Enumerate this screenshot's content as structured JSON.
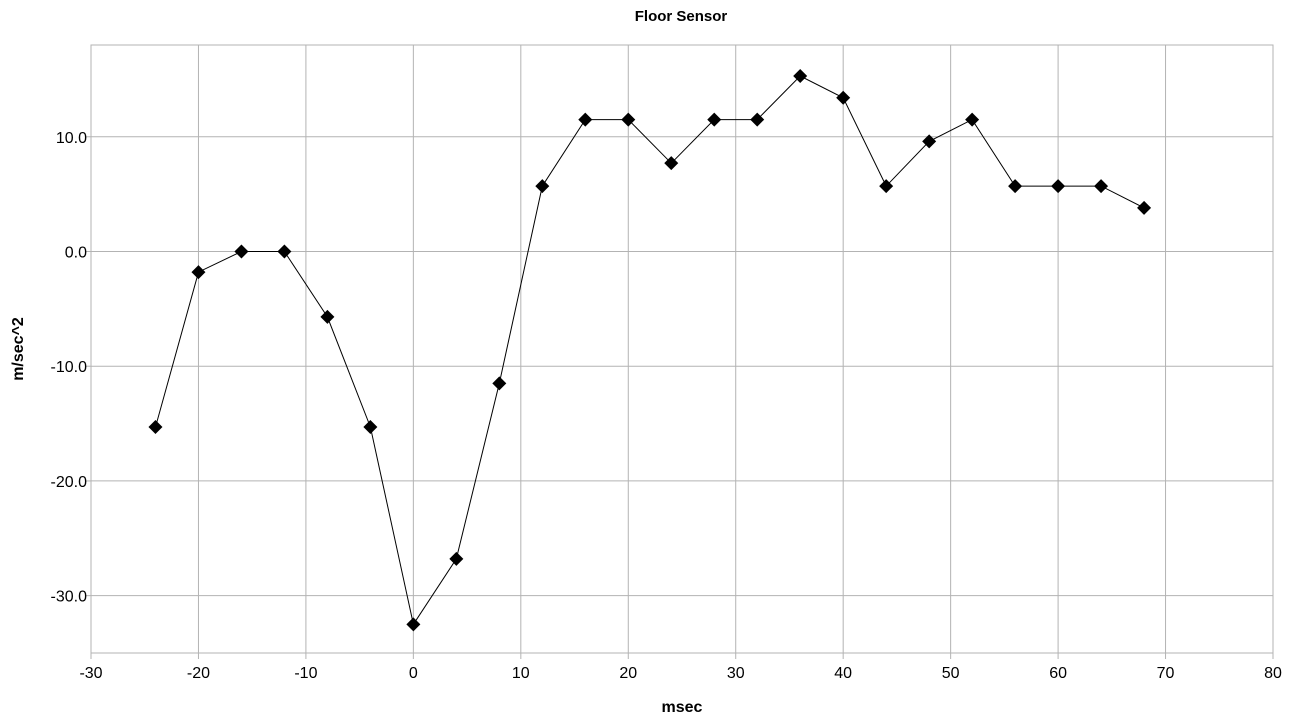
{
  "chart_data": {
    "type": "line",
    "title": "Floor Sensor",
    "xlabel": "msec",
    "ylabel": "m/sec^2",
    "xlim": [
      -30,
      80
    ],
    "ylim": [
      -35,
      18
    ],
    "xticks": [
      -30,
      -20,
      -10,
      0,
      10,
      20,
      30,
      40,
      50,
      60,
      70,
      80
    ],
    "xtick_labels": [
      "-30",
      "-20",
      "-10",
      "0",
      "10",
      "20",
      "30",
      "40",
      "50",
      "60",
      "70",
      "80"
    ],
    "yticks": [
      10,
      0,
      -10,
      -20,
      -30
    ],
    "ytick_labels": [
      "10.0",
      "0.0",
      "-10.0",
      "-20.0",
      "-30.0"
    ],
    "grid": true,
    "marker": "diamond",
    "color": "#000000",
    "x": [
      -24,
      -20,
      -16,
      -12,
      -8,
      -4,
      0,
      4,
      8,
      12,
      16,
      20,
      24,
      28,
      32,
      36,
      40,
      44,
      48,
      52,
      56,
      60,
      64,
      68
    ],
    "y": [
      -15.3,
      -1.8,
      0.0,
      0.0,
      -5.7,
      -15.3,
      -32.5,
      -26.8,
      -11.5,
      5.7,
      11.5,
      11.5,
      7.7,
      11.5,
      11.5,
      15.3,
      13.4,
      5.7,
      9.6,
      11.5,
      5.7,
      5.7,
      5.7,
      3.8
    ]
  }
}
